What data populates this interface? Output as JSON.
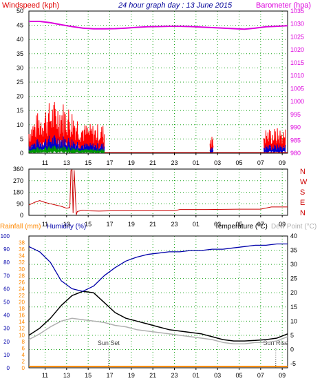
{
  "colors": {
    "background": "#ffffff",
    "frame": "#000000",
    "grid": "#19a319",
    "wind_speed": "#e00000",
    "wind_gust": "#ff0000",
    "wind_avg": "#0000cc",
    "wind_low": "#009900",
    "barometer": "#dd00dd",
    "wind_direction": "#cc0000",
    "rainfall": "#ff8800",
    "humidity": "#0000aa",
    "temperature": "#000000",
    "dew_point": "#b0b0b0",
    "date_title": "#000099",
    "marker_text": "#444444"
  },
  "header": {
    "windspeed_label": "Windspeed (kph)",
    "title": "24 hour graph day : 13 June 2015",
    "barometer_label": "Barometer (hpa)"
  },
  "bottom_header": {
    "rainfall_label": "Rainfall (mm)",
    "humidity_label": "Humidity (%)",
    "temperature_label": "Temperature (°C)",
    "dewpoint_label": "Dew Point (°C)"
  },
  "chart_data": [
    {
      "type": "line",
      "panel": "wind-barometer",
      "x_ticks": [
        "11",
        "13",
        "15",
        "17",
        "19",
        "21",
        "23",
        "01",
        "03",
        "05",
        "07",
        "09"
      ],
      "x_range_hours": [
        9.5,
        33.5
      ],
      "left_axis": {
        "label": "Windspeed (kph)",
        "range": [
          0,
          50
        ],
        "ticks": [
          0,
          5,
          10,
          15,
          20,
          25,
          30,
          35,
          40,
          45,
          50
        ]
      },
      "right_axis": {
        "label": "Barometer (hpa)",
        "range": [
          980,
          1035
        ],
        "ticks": [
          980,
          985,
          990,
          995,
          1000,
          1005,
          1010,
          1015,
          1020,
          1025,
          1030,
          1035
        ]
      },
      "barometer": {
        "x": [
          9.5,
          10.5,
          11.5,
          12.5,
          13.5,
          14.5,
          15.5,
          16.5,
          17.5,
          18.5,
          19.5,
          20.5,
          21.5,
          22.5,
          23.5,
          24.5,
          25.5,
          26.5,
          27.5,
          28.5,
          29.5,
          30.5,
          31.5,
          32.5,
          33.5
        ],
        "y": [
          1031.0,
          1031.0,
          1030.5,
          1029.7,
          1029.0,
          1028.4,
          1028.1,
          1028.1,
          1028.2,
          1028.4,
          1028.7,
          1028.9,
          1029.0,
          1029.1,
          1029.1,
          1029.0,
          1028.8,
          1028.6,
          1028.4,
          1028.2,
          1028.0,
          1028.4,
          1028.9,
          1029.1,
          1029.3
        ]
      },
      "wind_bursts": [
        {
          "from": 9.5,
          "to": 16.5,
          "peak": 19
        },
        {
          "from": 26.3,
          "to": 26.6,
          "peak": 7
        },
        {
          "from": 31.3,
          "to": 33.3,
          "peak": 9
        }
      ]
    },
    {
      "type": "line",
      "panel": "wind-direction",
      "x_ticks": [
        "11",
        "13",
        "15",
        "17",
        "19",
        "21",
        "23",
        "01",
        "03",
        "05",
        "07",
        "09"
      ],
      "left_axis": {
        "range": [
          0,
          360
        ],
        "ticks": [
          0,
          90,
          180,
          270,
          360
        ]
      },
      "right_axis_labels": [
        "N",
        "W",
        "S",
        "E",
        "N"
      ],
      "direction": {
        "x": [
          9.5,
          10.0,
          10.5,
          11.0,
          11.5,
          12.0,
          12.5,
          13.0,
          13.3,
          13.4,
          13.5,
          13.6,
          13.7,
          13.9,
          14.0,
          14.5,
          15.0,
          16.0,
          17.0,
          20.0,
          23.0,
          23.5,
          26.0,
          29.0,
          31.0,
          32.0,
          33.5
        ],
        "y": [
          80,
          100,
          115,
          100,
          90,
          80,
          70,
          55,
          60,
          350,
          355,
          20,
          350,
          5,
          30,
          40,
          35,
          33,
          35,
          35,
          35,
          45,
          45,
          48,
          48,
          65,
          65
        ]
      }
    },
    {
      "type": "line",
      "panel": "temperature-humidity",
      "x_ticks": [
        "11",
        "13",
        "15",
        "17",
        "19",
        "21",
        "23",
        "01",
        "03",
        "05",
        "07",
        "09"
      ],
      "humidity_axis": {
        "label": "Humidity (%)",
        "range": [
          0,
          100
        ],
        "ticks": [
          0,
          10,
          20,
          30,
          40,
          50,
          60,
          70,
          80,
          90,
          100
        ]
      },
      "rainfall_axis": {
        "label": "Rainfall (mm)",
        "range": [
          0,
          40
        ],
        "ticks": [
          0,
          2,
          4,
          6,
          8,
          10,
          12,
          14,
          16,
          18,
          20,
          22,
          24,
          26,
          28,
          30,
          32,
          34,
          36,
          38
        ]
      },
      "temperature_axis": {
        "label": "Temperature (°C)",
        "range": [
          -5,
          40
        ],
        "ticks": [
          -5,
          0,
          5,
          10,
          15,
          20,
          25,
          30,
          35,
          40
        ]
      },
      "x": [
        9.5,
        10.5,
        11.5,
        12.5,
        13.5,
        14.5,
        15.5,
        16.5,
        17.5,
        18.5,
        19.5,
        20.5,
        21.5,
        22.5,
        23.5,
        24.5,
        25.5,
        26.5,
        27.5,
        28.5,
        29.5,
        30.5,
        31.5,
        32.5,
        33.5
      ],
      "series": [
        {
          "name": "Temperature (°C)",
          "axis": "temperature",
          "values": [
            5.0,
            7.5,
            11.0,
            15.5,
            19.0,
            20.5,
            20.0,
            16.5,
            13.0,
            11.0,
            10.0,
            9.0,
            8.0,
            7.0,
            6.5,
            6.0,
            5.5,
            4.5,
            3.5,
            3.0,
            3.0,
            3.2,
            3.5,
            4.0,
            5.5
          ]
        },
        {
          "name": "Dew Point (°C)",
          "axis": "temperature",
          "values": [
            3.5,
            5.5,
            8.0,
            10.0,
            11.0,
            10.5,
            10.0,
            9.5,
            8.5,
            8.0,
            7.0,
            6.5,
            6.0,
            5.5,
            5.0,
            4.5,
            4.0,
            3.5,
            2.5,
            2.0,
            2.0,
            2.5,
            2.5,
            3.0,
            4.5
          ]
        },
        {
          "name": "Humidity (%)",
          "axis": "humidity",
          "values": [
            92,
            88,
            80,
            66,
            60,
            58,
            62,
            70,
            76,
            81,
            84,
            86,
            87,
            88,
            88,
            89,
            89,
            90,
            90,
            91,
            92,
            93,
            93,
            94,
            94
          ]
        },
        {
          "name": "Rainfall (mm)",
          "axis": "rainfall",
          "values": [
            0.4,
            0.4,
            0.4,
            0.4,
            0.4,
            0.4,
            0.4,
            0.4,
            0.4,
            0.4,
            0.4,
            0.4,
            0.4,
            0.4,
            0.4,
            0.4,
            0.4,
            0.4,
            0.4,
            0.4,
            0.4,
            0.4,
            0.4,
            0.4,
            0.4
          ]
        }
      ],
      "markers": [
        {
          "label": "Sun Set",
          "x": 16.9
        },
        {
          "label": "Sun Rise",
          "x": 32.4
        }
      ]
    }
  ]
}
